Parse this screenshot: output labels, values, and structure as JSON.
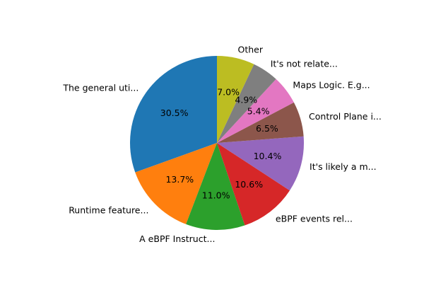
{
  "chart_data": {
    "type": "pie",
    "title": "",
    "start_angle_deg": 90,
    "direction": "counterclockwise",
    "slices": [
      {
        "label": "The general uti...",
        "value": 30.5,
        "pct_label": "30.5%",
        "color": "#1f77b4"
      },
      {
        "label": "Runtime feature...",
        "value": 13.7,
        "pct_label": "13.7%",
        "color": "#ff7f0e"
      },
      {
        "label": "A eBPF Instruct...",
        "value": 11.0,
        "pct_label": "11.0%",
        "color": "#2ca02c"
      },
      {
        "label": "eBPF events rel...",
        "value": 10.6,
        "pct_label": "10.6%",
        "color": "#d62728"
      },
      {
        "label": "It's likely a m...",
        "value": 10.4,
        "pct_label": "10.4%",
        "color": "#9467bd"
      },
      {
        "label": "Control Plane i...",
        "value": 6.5,
        "pct_label": "6.5%",
        "color": "#8c564b"
      },
      {
        "label": "Maps Logic. E.g...",
        "value": 5.4,
        "pct_label": "5.4%",
        "color": "#e377c2"
      },
      {
        "label": "It's not relate...",
        "value": 4.9,
        "pct_label": "4.9%",
        "color": "#7f7f7f"
      },
      {
        "label": "Other",
        "value": 7.0,
        "pct_label": "7.0%",
        "color": "#bcbd22"
      }
    ]
  }
}
